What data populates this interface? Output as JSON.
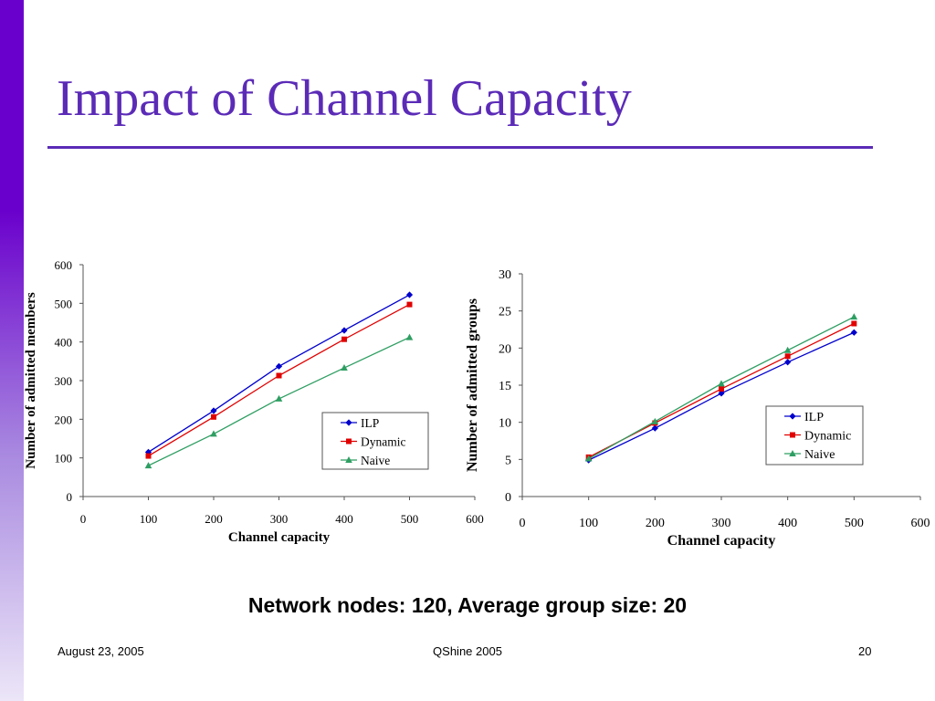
{
  "slide": {
    "title": "Impact of Channel Capacity",
    "subtitle": "Network nodes: 120, Average group size: 20",
    "footer_date": "August 23, 2005",
    "footer_center": "QShine 2005",
    "page_number": "20",
    "accent_color": "#5b2bb7"
  },
  "chart_data": [
    {
      "type": "line",
      "title": "",
      "xlabel": "Channel capacity",
      "ylabel": "Number of admitted members",
      "xlim": [
        0,
        600
      ],
      "ylim": [
        0,
        600
      ],
      "x_ticks": [
        0,
        100,
        200,
        300,
        400,
        500,
        600
      ],
      "y_ticks": [
        0,
        100,
        200,
        300,
        400,
        500,
        600
      ],
      "x": [
        100,
        200,
        300,
        400,
        500
      ],
      "legend_position": "center-right",
      "grid": false,
      "series": [
        {
          "name": "ILP",
          "values": [
            115,
            222,
            337,
            430,
            522
          ],
          "color": "#0000cc",
          "marker": "diamond"
        },
        {
          "name": "Dynamic",
          "values": [
            105,
            206,
            313,
            407,
            497
          ],
          "color": "#e00000",
          "marker": "square"
        },
        {
          "name": "Naive",
          "values": [
            80,
            162,
            253,
            333,
            412
          ],
          "color": "#2e9e62",
          "marker": "triangle"
        }
      ]
    },
    {
      "type": "line",
      "title": "",
      "xlabel": "Channel capacity",
      "ylabel": "Number of admitted groups",
      "xlim": [
        0,
        600
      ],
      "ylim": [
        0,
        30
      ],
      "x_ticks": [
        0,
        100,
        200,
        300,
        400,
        500,
        600
      ],
      "y_ticks": [
        0,
        5,
        10,
        15,
        20,
        25,
        30
      ],
      "x": [
        100,
        200,
        300,
        400,
        500
      ],
      "legend_position": "center-right",
      "grid": false,
      "series": [
        {
          "name": "ILP",
          "values": [
            4.9,
            9.2,
            13.9,
            18.1,
            22.1
          ],
          "color": "#0000cc",
          "marker": "diamond"
        },
        {
          "name": "Dynamic",
          "values": [
            5.3,
            9.9,
            14.5,
            18.9,
            23.3
          ],
          "color": "#e00000",
          "marker": "square"
        },
        {
          "name": "Naive",
          "values": [
            5.1,
            10.1,
            15.2,
            19.7,
            24.2
          ],
          "color": "#2e9e62",
          "marker": "triangle"
        }
      ]
    }
  ]
}
